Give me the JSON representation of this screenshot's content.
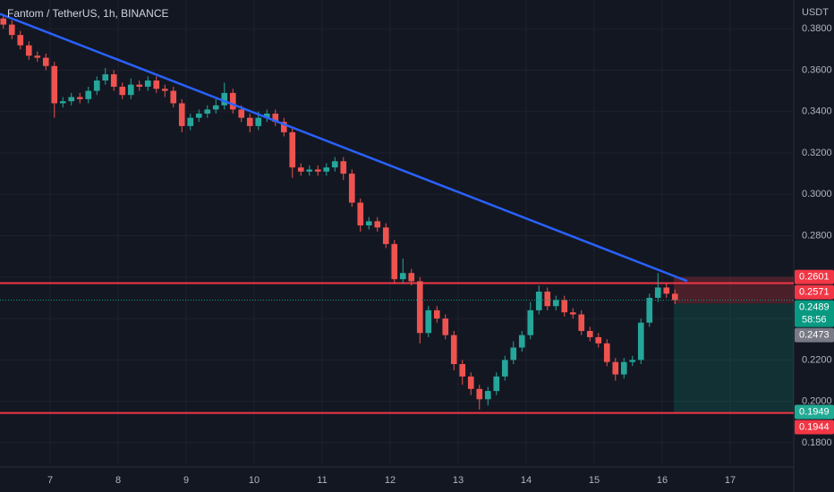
{
  "chart_data": {
    "type": "candlestick",
    "title": "Fantom / TetherUS, 1h, BINANCE",
    "y_unit": "USDT",
    "up_color": "#26a69a",
    "down_color": "#ef5350",
    "x": [
      6.25,
      6.375,
      6.5,
      6.625,
      6.75,
      6.875,
      7,
      7.125,
      7.25,
      7.375,
      7.5,
      7.625,
      7.75,
      7.875,
      8,
      8.125,
      8.25,
      8.375,
      8.5,
      8.625,
      8.75,
      8.875,
      9,
      9.125,
      9.25,
      9.375,
      9.5,
      9.625,
      9.75,
      9.875,
      10,
      10.125,
      10.25,
      10.375,
      10.5,
      10.625,
      10.75,
      10.875,
      11,
      11.125,
      11.25,
      11.375,
      11.5,
      11.625,
      11.75,
      11.875,
      12,
      12.125,
      12.25,
      12.375,
      12.5,
      12.625,
      12.75,
      12.875,
      13,
      13.125,
      13.25,
      13.375,
      13.5,
      13.625,
      13.75,
      13.875,
      14,
      14.125,
      14.25,
      14.375,
      14.5,
      14.625,
      14.75,
      14.875,
      15,
      15.125,
      15.25,
      15.375,
      15.5,
      15.625,
      15.75,
      15.875,
      16,
      16.125
    ],
    "open": [
      0.385,
      0.382,
      0.377,
      0.372,
      0.367,
      0.366,
      0.362,
      0.344,
      0.345,
      0.347,
      0.346,
      0.35,
      0.355,
      0.358,
      0.352,
      0.348,
      0.353,
      0.352,
      0.355,
      0.351,
      0.35,
      0.344,
      0.333,
      0.337,
      0.339,
      0.341,
      0.343,
      0.349,
      0.341,
      0.337,
      0.333,
      0.337,
      0.339,
      0.335,
      0.33,
      0.313,
      0.311,
      0.312,
      0.311,
      0.313,
      0.316,
      0.31,
      0.296,
      0.285,
      0.287,
      0.284,
      0.276,
      0.259,
      0.262,
      0.258,
      0.233,
      0.244,
      0.24,
      0.232,
      0.218,
      0.212,
      0.206,
      0.201,
      0.205,
      0.212,
      0.22,
      0.226,
      0.232,
      0.244,
      0.253,
      0.246,
      0.249,
      0.243,
      0.242,
      0.234,
      0.231,
      0.228,
      0.219,
      0.213,
      0.219,
      0.22,
      0.238,
      0.25,
      0.255,
      0.252
    ],
    "high": [
      0.387,
      0.384,
      0.379,
      0.374,
      0.369,
      0.368,
      0.364,
      0.347,
      0.349,
      0.349,
      0.352,
      0.357,
      0.361,
      0.36,
      0.354,
      0.356,
      0.355,
      0.357,
      0.357,
      0.353,
      0.352,
      0.346,
      0.339,
      0.341,
      0.343,
      0.346,
      0.354,
      0.351,
      0.343,
      0.339,
      0.34,
      0.341,
      0.341,
      0.337,
      0.332,
      0.315,
      0.314,
      0.314,
      0.315,
      0.318,
      0.318,
      0.312,
      0.298,
      0.289,
      0.289,
      0.286,
      0.278,
      0.269,
      0.264,
      0.26,
      0.246,
      0.246,
      0.242,
      0.234,
      0.22,
      0.214,
      0.208,
      0.207,
      0.214,
      0.222,
      0.229,
      0.234,
      0.248,
      0.256,
      0.255,
      0.251,
      0.251,
      0.245,
      0.244,
      0.236,
      0.233,
      0.23,
      0.221,
      0.221,
      0.222,
      0.24,
      0.252,
      0.262,
      0.257,
      0.254
    ],
    "low": [
      0.38,
      0.375,
      0.37,
      0.365,
      0.364,
      0.36,
      0.337,
      0.342,
      0.343,
      0.344,
      0.344,
      0.348,
      0.353,
      0.35,
      0.346,
      0.346,
      0.35,
      0.35,
      0.349,
      0.347,
      0.342,
      0.33,
      0.331,
      0.335,
      0.337,
      0.339,
      0.341,
      0.339,
      0.335,
      0.33,
      0.331,
      0.335,
      0.333,
      0.328,
      0.308,
      0.309,
      0.309,
      0.309,
      0.309,
      0.311,
      0.307,
      0.294,
      0.282,
      0.283,
      0.282,
      0.274,
      0.257,
      0.257,
      0.256,
      0.228,
      0.231,
      0.238,
      0.23,
      0.215,
      0.208,
      0.203,
      0.196,
      0.198,
      0.203,
      0.21,
      0.218,
      0.224,
      0.23,
      0.242,
      0.244,
      0.244,
      0.241,
      0.24,
      0.232,
      0.229,
      0.226,
      0.217,
      0.21,
      0.211,
      0.217,
      0.218,
      0.236,
      0.248,
      0.25,
      0.247
    ],
    "close": [
      0.382,
      0.377,
      0.372,
      0.367,
      0.366,
      0.362,
      0.344,
      0.345,
      0.347,
      0.346,
      0.35,
      0.355,
      0.358,
      0.352,
      0.348,
      0.353,
      0.352,
      0.355,
      0.351,
      0.35,
      0.344,
      0.333,
      0.337,
      0.339,
      0.341,
      0.343,
      0.349,
      0.341,
      0.337,
      0.333,
      0.337,
      0.339,
      0.335,
      0.33,
      0.313,
      0.311,
      0.312,
      0.311,
      0.313,
      0.316,
      0.31,
      0.296,
      0.285,
      0.287,
      0.284,
      0.276,
      0.259,
      0.262,
      0.258,
      0.233,
      0.244,
      0.24,
      0.232,
      0.218,
      0.212,
      0.206,
      0.201,
      0.205,
      0.212,
      0.22,
      0.226,
      0.232,
      0.244,
      0.253,
      0.246,
      0.249,
      0.243,
      0.242,
      0.234,
      0.231,
      0.228,
      0.219,
      0.213,
      0.219,
      0.22,
      0.238,
      0.25,
      0.255,
      0.252,
      0.2489
    ],
    "xlim": [
      6.263,
      17.934
    ],
    "xticks": [
      7,
      8,
      9,
      10,
      11,
      12,
      13,
      14,
      15,
      16,
      17
    ],
    "ylim": [
      0.1683,
      0.3939
    ],
    "yticks": [
      {
        "value": 0.18,
        "label": "0.1800"
      },
      {
        "value": 0.2,
        "label": "0.2000"
      },
      {
        "value": 0.22,
        "label": "0.2200"
      },
      {
        "value": 0.24,
        "label": "0.2400"
      },
      {
        "value": 0.26,
        "label": "0.2600"
      },
      {
        "value": 0.28,
        "label": "0.2800"
      },
      {
        "value": 0.3,
        "label": "0.3000"
      },
      {
        "value": 0.32,
        "label": "0.3200"
      },
      {
        "value": 0.34,
        "label": "0.3400"
      },
      {
        "value": 0.36,
        "label": "0.3600"
      },
      {
        "value": 0.38,
        "label": "0.3800"
      }
    ],
    "grid": true,
    "trend_line": {
      "x": [
        6.263,
        16.368
      ],
      "y": [
        0.3872,
        0.2581
      ],
      "color": "#2962ff"
    },
    "horizontal_lines": {
      "values": [
        0.2571,
        0.1944
      ],
      "color": "#f23645"
    },
    "position": {
      "x_start": 16.171,
      "stop": 0.2601,
      "entry": 0.2473,
      "target": 0.1949,
      "stop_color": "#f23645",
      "target_color": "#089981"
    },
    "last_price_color": "#089981",
    "price_labels": [
      {
        "value": 0.2601,
        "color": "#f23645"
      },
      {
        "value": 0.2571,
        "color": "#f23645"
      },
      {
        "value": 0.2489,
        "color": "#089981",
        "countdown": "58:56"
      },
      {
        "value": 0.2473,
        "color": "#787b86"
      },
      {
        "value": 0.1949,
        "color": "#22ab94"
      },
      {
        "value": 0.1944,
        "color": "#f23645"
      }
    ]
  }
}
